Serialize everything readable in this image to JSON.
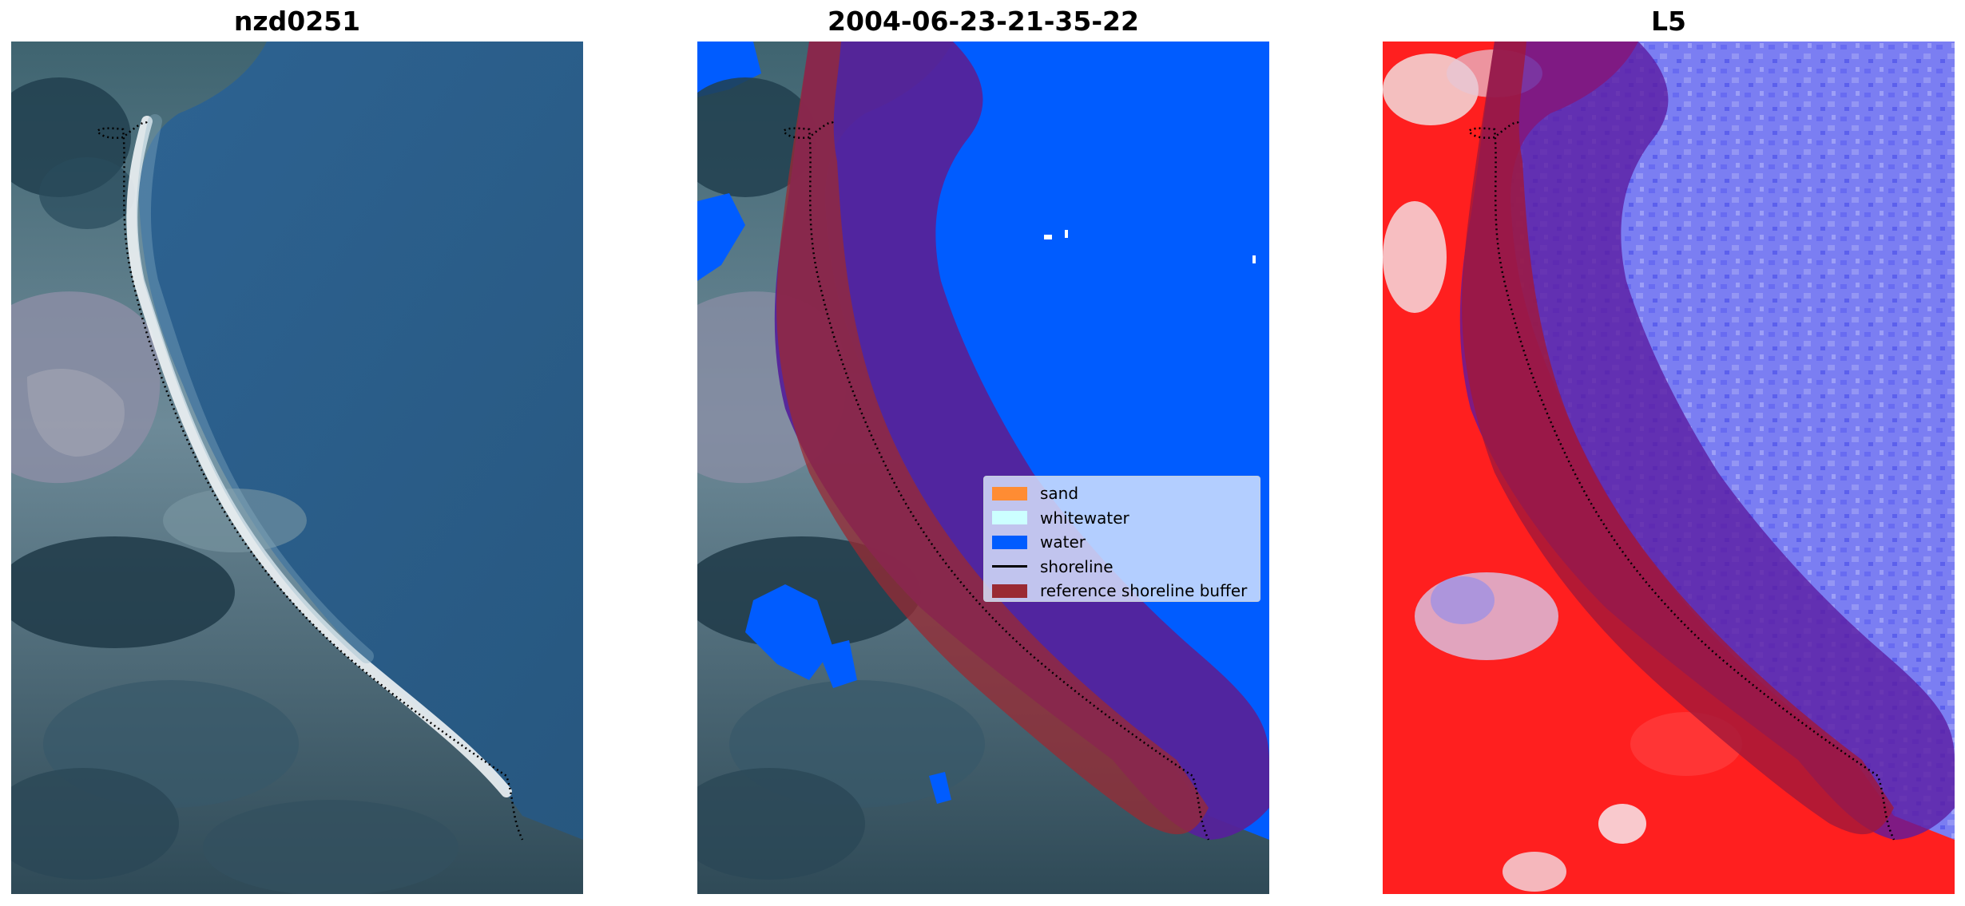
{
  "panels": [
    {
      "title": "nzd0251"
    },
    {
      "title": "2004-06-23-21-35-22"
    },
    {
      "title": "L5"
    }
  ],
  "legend": {
    "items": [
      {
        "label": "sand",
        "color": "#ff8c33",
        "kind": "patch"
      },
      {
        "label": "whitewater",
        "color": "#ccffff",
        "kind": "patch"
      },
      {
        "label": "water",
        "color": "#005cff",
        "kind": "patch"
      },
      {
        "label": "shoreline",
        "color": "#000000",
        "kind": "line"
      },
      {
        "label": "reference shoreline buffer",
        "color": "#9a2a33",
        "kind": "patch"
      }
    ]
  },
  "colors": {
    "water_class": "#005cff",
    "buffer_red": "#9a2a33",
    "buffer_purple": "#55229a",
    "sea_rgb": "#2c5c8c",
    "land_red": "#ff1a1a",
    "sea_blue_index": "#6f73f0"
  }
}
